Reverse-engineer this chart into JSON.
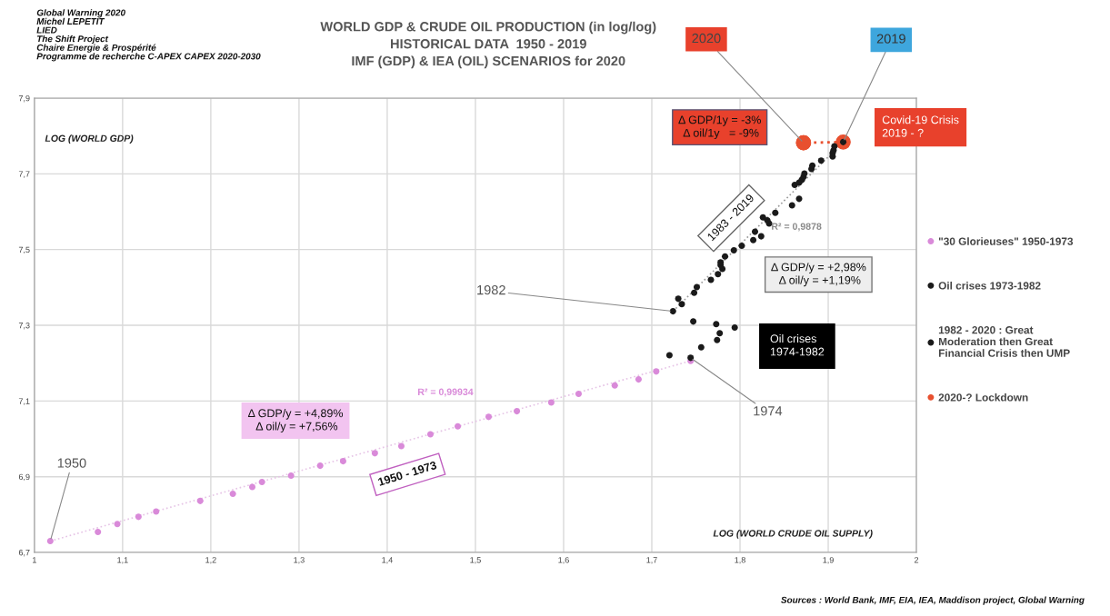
{
  "chart_data": {
    "type": "scatter",
    "title": "WORLD GDP & CRUDE OIL PRODUCTION (in log/log)\nHISTORICAL DATA  1950 - 2019\nIMF (GDP) & IEA (OIL) SCENARIOS for 2020",
    "xlabel": "LOG (WORLD CRUDE OIL SUPPLY)",
    "ylabel": "LOG (WORLD GDP)",
    "xlim": [
      1,
      2
    ],
    "ylim": [
      6.7,
      7.9
    ],
    "xticks": [
      {
        "value": 1,
        "label": "1"
      },
      {
        "value": 1.1,
        "label": "1,1"
      },
      {
        "value": 1.2,
        "label": "1,2"
      },
      {
        "value": 1.3,
        "label": "1,3"
      },
      {
        "value": 1.4,
        "label": "1,4"
      },
      {
        "value": 1.5,
        "label": "1,5"
      },
      {
        "value": 1.6,
        "label": "1,6"
      },
      {
        "value": 1.7,
        "label": "1,7"
      },
      {
        "value": 1.8,
        "label": "1,8"
      },
      {
        "value": 1.9,
        "label": "1,9"
      },
      {
        "value": 2,
        "label": "2"
      }
    ],
    "yticks": [
      {
        "value": 6.7,
        "label": "6,7"
      },
      {
        "value": 6.9,
        "label": "6,9"
      },
      {
        "value": 7.1,
        "label": "7,1"
      },
      {
        "value": 7.3,
        "label": "7,3"
      },
      {
        "value": 7.5,
        "label": "7,5"
      },
      {
        "value": 7.7,
        "label": "7,7"
      },
      {
        "value": 7.9,
        "label": "7,9"
      }
    ],
    "grid": true,
    "legend": "right",
    "marker": "circle",
    "series": [
      {
        "type": "line",
        "color": "#e6c4e6",
        "line_style": "dotted",
        "marker": "none",
        "x": [
          1.018,
          1.744
        ],
        "values": [
          6.73,
          7.206
        ]
      },
      {
        "type": "line",
        "color": "#9a9a9a",
        "line_style": "dotted",
        "marker": "none",
        "x": [
          1.724,
          1.917
        ],
        "values": [
          7.337,
          7.784
        ]
      },
      {
        "name": "\"30 Glorieuses\" 1950-1973",
        "color": "#d98ad9",
        "x": [
          1.018,
          1.072,
          1.094,
          1.118,
          1.138,
          1.188,
          1.225,
          1.247,
          1.258,
          1.291,
          1.324,
          1.35,
          1.386,
          1.416,
          1.449,
          1.48,
          1.515,
          1.547,
          1.586,
          1.617,
          1.658,
          1.685,
          1.705,
          1.744
        ],
        "values": [
          6.73,
          6.754,
          6.775,
          6.794,
          6.808,
          6.836,
          6.855,
          6.873,
          6.886,
          6.903,
          6.929,
          6.941,
          6.962,
          6.981,
          7.012,
          7.033,
          7.058,
          7.073,
          7.096,
          7.119,
          7.141,
          7.157,
          7.178,
          7.206
        ]
      },
      {
        "name": "Oil crises 1973-1982",
        "color": "#1a1a1a",
        "x": [
          1.744,
          1.72,
          1.756,
          1.774,
          1.777,
          1.773,
          1.794,
          1.747,
          1.724
        ],
        "values": [
          7.214,
          7.221,
          7.242,
          7.261,
          7.279,
          7.303,
          7.294,
          7.31,
          7.337
        ]
      },
      {
        "name": "1982 - 2020 : Great\nModeration then Great\nFinancial Crisis then UMP",
        "color": "#1a1a1a",
        "x": [
          1.73,
          1.734,
          1.748,
          1.751,
          1.767,
          1.775,
          1.78,
          1.778,
          1.778,
          1.783,
          1.793,
          1.802,
          1.815,
          1.824,
          1.817,
          1.826,
          1.833,
          1.831,
          1.84,
          1.859,
          1.867,
          1.862,
          1.867,
          1.87,
          1.872,
          1.873,
          1.881,
          1.882,
          1.892,
          1.905,
          1.905,
          1.906,
          1.907,
          1.917
        ],
        "values": [
          7.37,
          7.356,
          7.386,
          7.401,
          7.42,
          7.435,
          7.449,
          7.459,
          7.466,
          7.482,
          7.498,
          7.51,
          7.525,
          7.535,
          7.547,
          7.585,
          7.569,
          7.577,
          7.597,
          7.617,
          7.634,
          7.671,
          7.677,
          7.684,
          7.692,
          7.701,
          7.713,
          7.722,
          7.735,
          7.746,
          7.755,
          7.762,
          7.773,
          7.784
        ]
      },
      {
        "name": "2020-? Lockdown",
        "type": "line",
        "color": "#e8502f",
        "line_style": "dotted",
        "x": [
          1.917,
          1.872
        ],
        "values": [
          7.784,
          7.782
        ]
      }
    ],
    "annotations": [
      "Global Warning 2020\nMichel LEPETIT\nLIED\nThe Shift Project\nChaire Energie & Prospérité\nProgramme de recherche C-APEX CAPEX 2020-2030",
      "Sources : World Bank, IMF, EIA, IEA, Maddison project, Global Warning",
      "R² = 0,99934",
      "R² = 0,9878",
      "Δ GDP/y = +4,89%\n Δ oil/y = +7,56%",
      "1950 - 1973",
      "1983 - 2019",
      "Δ GDP/y = +2,98%\n Δ oil/y = +1,19%",
      "Oil crises\n1974-1982",
      "Δ GDP/1y = -3%\n Δ oil/1y   = -9%",
      "Covid-19 Crisis\n2019 - ?",
      {
        "text": "1950",
        "x": 1.018,
        "y": 6.73
      },
      {
        "text": "1974",
        "x": 1.744,
        "y": 7.214
      },
      {
        "text": "1982",
        "x": 1.724,
        "y": 7.337
      },
      {
        "text": "2020",
        "x": 1.872,
        "y": 7.782
      },
      {
        "text": "2019",
        "x": 1.917,
        "y": 7.784
      }
    ]
  }
}
